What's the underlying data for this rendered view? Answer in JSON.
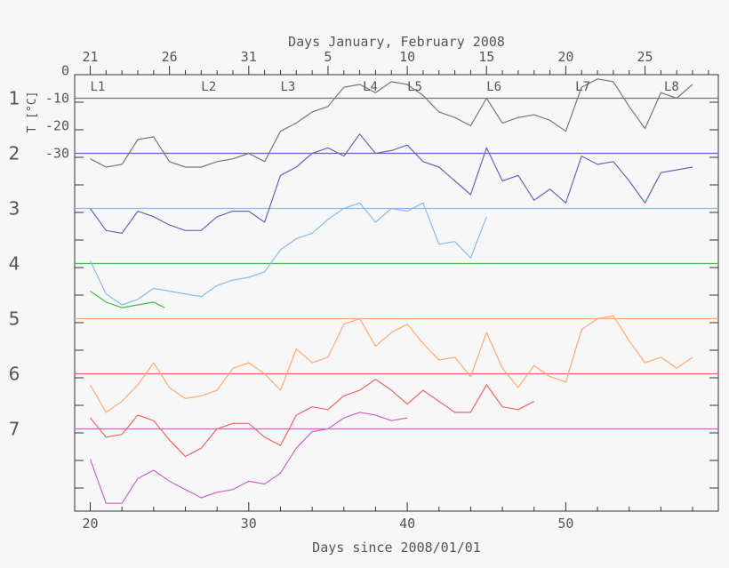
{
  "chart_data": {
    "type": "line",
    "xlabel": "Days since 2008/01/01",
    "top_xlabel": "Days January, February 2008",
    "ylabel": "T [°C]",
    "xlim": [
      19,
      60
    ],
    "bottom_ticks": [
      "20",
      "30",
      "40",
      "50"
    ],
    "top_ticks": [
      {
        "day": 20,
        "label": "21"
      },
      {
        "day": 25,
        "label": "26"
      },
      {
        "day": 30,
        "label": "31"
      },
      {
        "day": 35,
        "label": "5"
      },
      {
        "day": 40,
        "label": "10"
      },
      {
        "day": 45,
        "label": "15"
      },
      {
        "day": 50,
        "label": "20"
      },
      {
        "day": 55,
        "label": "25"
      }
    ],
    "y_ticks": [
      "0",
      "-10",
      "-20",
      "-30"
    ],
    "deg_per_band": 20,
    "legs": [
      {
        "label": "L1",
        "day": 20.0
      },
      {
        "label": "L2",
        "day": 27.0
      },
      {
        "label": "L3",
        "day": 32.0
      },
      {
        "label": "L4",
        "day": 37.2
      },
      {
        "label": "L5",
        "day": 40.0
      },
      {
        "label": "L6",
        "day": 45.0
      },
      {
        "label": "L7",
        "day": 50.6
      },
      {
        "label": "L8",
        "day": 56.2
      }
    ],
    "series": [
      {
        "name": "1",
        "color": "#777777",
        "ref_value": -10,
        "x": [
          20,
          21,
          22,
          23,
          24,
          25,
          26,
          27,
          28,
          29,
          30,
          31,
          32,
          33,
          34,
          35,
          36,
          37,
          38,
          39,
          40,
          41,
          42,
          43,
          44,
          45,
          46,
          47,
          48,
          49,
          50,
          51,
          52,
          53,
          54,
          55,
          56,
          57,
          58
        ],
        "y": [
          -32,
          -35,
          -34,
          -25,
          -24,
          -33,
          -35,
          -35,
          -33,
          -32,
          -30,
          -33,
          -22,
          -19,
          -15,
          -13,
          -6,
          -5,
          -8,
          -4,
          -5,
          -9,
          -15,
          -17,
          -20,
          -10,
          -19,
          -17,
          -16,
          -18,
          -22,
          -6,
          -3,
          -4,
          -13,
          -21,
          -8,
          -10,
          -5
        ]
      },
      {
        "name": "2",
        "color": "#6666bb",
        "ref_value": -30,
        "x": [
          20,
          21,
          22,
          23,
          24,
          25,
          26,
          27,
          28,
          29,
          30,
          31,
          32,
          33,
          34,
          35,
          36,
          37,
          38,
          39,
          40,
          41,
          42,
          43,
          44,
          45,
          46,
          47,
          48,
          49,
          50,
          51,
          52,
          53,
          54,
          55,
          56,
          57,
          58
        ],
        "y": [
          -50,
          -58,
          -59,
          -51,
          -53,
          -56,
          -58,
          -58,
          -53,
          -51,
          -51,
          -55,
          -38,
          -35,
          -30,
          -28,
          -31,
          -23,
          -30,
          -29,
          -27,
          -33,
          -35,
          -40,
          -45,
          -28,
          -40,
          -38,
          -47,
          -43,
          -48,
          -31,
          -34,
          -33,
          -40,
          -48,
          -37,
          -36,
          -35
        ]
      },
      {
        "name": "3",
        "color": "#88bbee",
        "ref_value": -50,
        "x": [
          20,
          21,
          22,
          23,
          24,
          25,
          26,
          27,
          28,
          29,
          30,
          31,
          32,
          33,
          34,
          35,
          36,
          37,
          38,
          39,
          40,
          41,
          42,
          43,
          44,
          45
        ],
        "y": [
          -69,
          -81,
          -85,
          -83,
          -79,
          -80,
          -81,
          -82,
          -78,
          -76,
          -75,
          -73,
          -65,
          -61,
          -59,
          -54,
          -50,
          -48,
          -55,
          -50,
          -51,
          -48,
          -63,
          -62,
          -68,
          -53
        ]
      },
      {
        "name": "4",
        "color": "#44bb44",
        "ref_value": -70,
        "x": [
          20,
          21,
          22,
          23,
          24,
          24.7
        ],
        "y": [
          -80,
          -84,
          -86,
          -85,
          -84,
          -86
        ]
      },
      {
        "name": "5",
        "color": "#ffaa77",
        "ref_value": -90,
        "x": [
          20,
          21,
          22,
          23,
          24,
          25,
          26,
          27,
          28,
          29,
          30,
          31,
          32,
          33,
          34,
          35,
          36,
          37,
          38,
          39,
          40,
          41,
          42,
          43,
          44,
          45,
          46,
          47,
          48,
          49,
          50,
          51,
          52,
          53,
          54,
          55,
          56,
          57,
          58
        ],
        "y": [
          -114,
          -124,
          -120,
          -114,
          -106,
          -115,
          -119,
          -118,
          -116,
          -108,
          -106,
          -110,
          -116,
          -101,
          -106,
          -104,
          -92,
          -90,
          -100,
          -95,
          -92,
          -99,
          -105,
          -104,
          -111,
          -95,
          -108,
          -115,
          -107,
          -111,
          -113,
          -94,
          -90,
          -89,
          -98,
          -106,
          -104,
          -108,
          -104
        ]
      },
      {
        "name": "6",
        "color": "#ee6666",
        "ref_value": -110,
        "x": [
          20,
          21,
          22,
          23,
          24,
          25,
          26,
          27,
          28,
          29,
          30,
          31,
          32,
          33,
          34,
          35,
          36,
          37,
          38,
          39,
          40,
          41,
          42,
          43,
          44,
          45,
          46,
          47,
          48
        ],
        "y": [
          -126,
          -133,
          -132,
          -125,
          -127,
          -134,
          -140,
          -137,
          -130,
          -128,
          -128,
          -133,
          -136,
          -125,
          -122,
          -123,
          -118,
          -116,
          -112,
          -116,
          -121,
          -116,
          -120,
          -124,
          -124,
          -114,
          -122,
          -123,
          -120
        ]
      },
      {
        "name": "7",
        "color": "#cc66cc",
        "ref_value": -130,
        "x": [
          20,
          21,
          22,
          23,
          24,
          25,
          26,
          27,
          28,
          29,
          30,
          31,
          32,
          33,
          34,
          35,
          36,
          37,
          38,
          39,
          40
        ],
        "y": [
          -141,
          -157,
          -157,
          -148,
          -145,
          -149,
          -152,
          -155,
          -153,
          -152,
          -149,
          -150,
          -146,
          -137,
          -131,
          -130,
          -126,
          -124,
          -125,
          -127,
          -126
        ]
      }
    ]
  }
}
